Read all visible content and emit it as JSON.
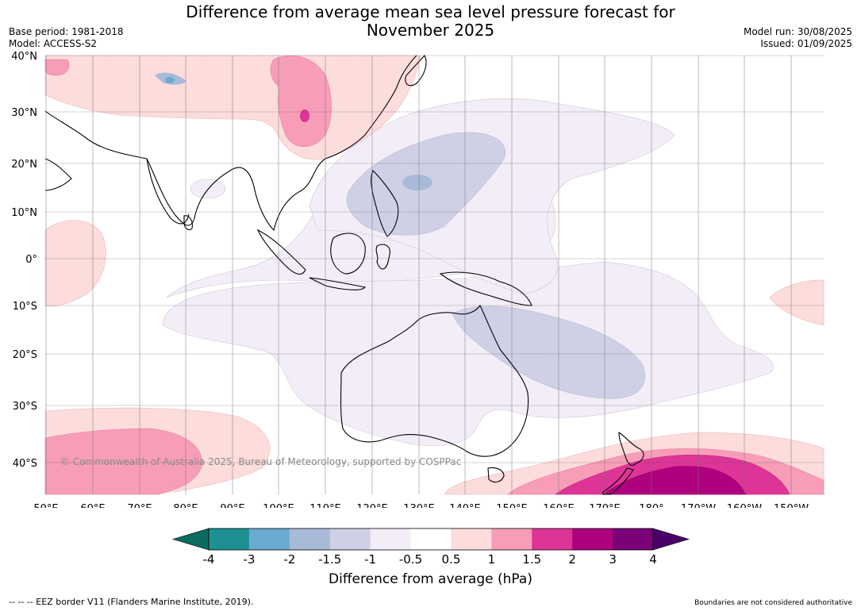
{
  "title_line1": "Difference from average mean sea level pressure forecast for",
  "title_line2": "November 2025",
  "base_period": "Base period: 1981-2018",
  "model": "Model: ACCESS-S2",
  "model_run": "Model run: 30/08/2025",
  "issued": "Issued: 01/09/2025",
  "copyright": "© Commonwealth of Australia 2025, Bureau of Meteorology, supported by COSPPac",
  "lat_labels": [
    "40°N",
    "30°N",
    "20°N",
    "10°N",
    "0°",
    "10°S",
    "20°S",
    "30°S",
    "40°S"
  ],
  "lon_labels": [
    "50°E",
    "60°E",
    "70°E",
    "80°E",
    "90°E",
    "100°E",
    "110°E",
    "120°E",
    "130°E",
    "140°E",
    "150°E",
    "160°E",
    "170°E",
    "180°",
    "170°W",
    "160°W",
    "150°W"
  ],
  "colorbar": {
    "title": "Difference from average (hPa)",
    "ticks": [
      "-4",
      "-3",
      "-2",
      "-1.5",
      "-1",
      "-0.5",
      "0.5",
      "1",
      "1.5",
      "2",
      "3",
      "4"
    ],
    "colors": {
      "below_min": "#0b6b5e",
      "c1": "#1e8f93",
      "c2": "#6aabd2",
      "c3": "#a9b9d8",
      "c4": "#cfd0e6",
      "c5": "#f2edf6",
      "c6": "#ffffff",
      "c7": "#fddcdc",
      "c8": "#f79db8",
      "c9": "#dd3497",
      "c10": "#ae017e",
      "c11": "#7a0177",
      "above_max": "#49006a"
    }
  },
  "footer_left": "--  --  -- EEZ border V11 (Flanders Marine Institute, 2019).",
  "footer_right": "Boundaries are not considered authoritative"
}
